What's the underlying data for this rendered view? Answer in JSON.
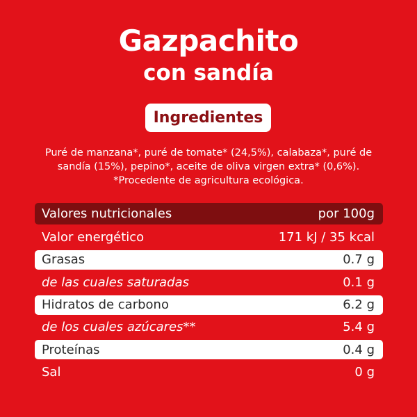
{
  "product": {
    "title": "Gazpachito",
    "subtitle": "con sandía"
  },
  "ingredients": {
    "heading": "Ingredientes",
    "line1": "Puré de manzana*, puré de tomate* (24,5%), calabaza*, puré de",
    "line2": "sandía (15%), pepino*, aceite de oliva virgen extra* (0,6%).",
    "line3": "*Procedente de agricultura ecológica."
  },
  "nutrition": {
    "header_label": "Valores nutricionales",
    "header_value": "por 100g",
    "rows": [
      {
        "label": "Valor energético",
        "value": "171 kJ / 35 kcal"
      },
      {
        "label": "Grasas",
        "value": "0.7 g"
      },
      {
        "label": "de las cuales saturadas",
        "value": "0.1 g"
      },
      {
        "label": "Hidratos de carbono",
        "value": "6.2 g"
      },
      {
        "label": "de los cuales azúcares**",
        "value": "5.4 g"
      },
      {
        "label": "Proteínas",
        "value": "0.4 g"
      },
      {
        "label": "Sal",
        "value": "0 g"
      }
    ]
  },
  "colors": {
    "background": "#e2121a",
    "header_row": "#7e0e10",
    "pill_text": "#8c1014"
  }
}
